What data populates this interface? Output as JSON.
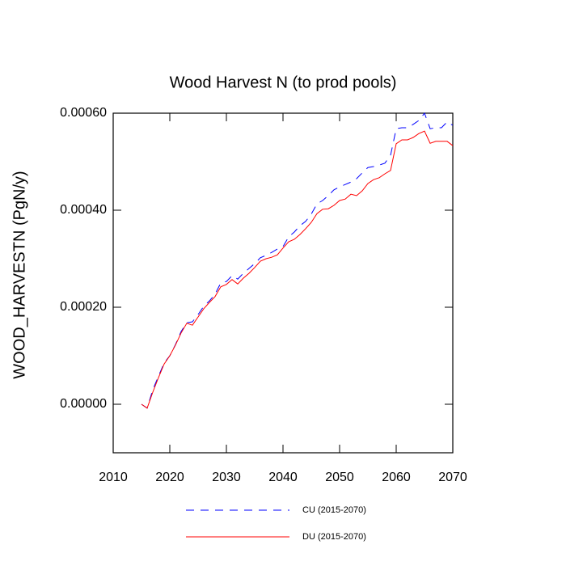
{
  "chart_data": {
    "type": "line",
    "title": "Wood Harvest N (to prod pools)",
    "y_label": "WOOD_HARVESTN  (PgN/y)",
    "x": [
      2015,
      2016,
      2017,
      2018,
      2019,
      2020,
      2021,
      2022,
      2023,
      2024,
      2025,
      2026,
      2027,
      2028,
      2029,
      2030,
      2031,
      2032,
      2033,
      2034,
      2035,
      2036,
      2037,
      2038,
      2039,
      2040,
      2041,
      2042,
      2043,
      2044,
      2045,
      2046,
      2047,
      2048,
      2049,
      2050,
      2051,
      2052,
      2053,
      2054,
      2055,
      2056,
      2057,
      2058,
      2059,
      2060,
      2061,
      2062,
      2063,
      2064,
      2065,
      2066,
      2067,
      2068,
      2069,
      2070
    ],
    "series": [
      {
        "name": "CU (2015-2070)",
        "color": "#0000ff",
        "dash": "dashed",
        "values": [
          0,
          -8e-06,
          3e-05,
          5.8e-05,
          8.5e-05,
          0.0001,
          0.000123,
          0.00015,
          0.000168,
          0.00017,
          0.000185,
          0.000202,
          0.000213,
          0.000227,
          0.00025,
          0.000253,
          0.000265,
          0.000258,
          0.00027,
          0.00028,
          0.00029,
          0.000302,
          0.000307,
          0.000313,
          0.00032,
          0.000325,
          0.000345,
          0.000355,
          0.000368,
          0.000377,
          0.000392,
          0.000413,
          0.00042,
          0.00043,
          0.000442,
          0.000448,
          0.000453,
          0.000458,
          0.000465,
          0.000477,
          0.000488,
          0.00049,
          0.000493,
          0.000497,
          0.000513,
          0.000568,
          0.00057,
          0.00057,
          0.000577,
          0.000585,
          0.0006,
          0.000568,
          0.00057,
          0.00057,
          0.000582,
          0.000575
        ]
      },
      {
        "name": "DU (2015-2070)",
        "color": "#ff0000",
        "dash": "solid",
        "values": [
          0,
          -8e-06,
          2.5e-05,
          5.5e-05,
          8.3e-05,
          0.0001,
          0.000122,
          0.000147,
          0.000167,
          0.000163,
          0.00018,
          0.000197,
          0.00021,
          0.000222,
          0.000242,
          0.000247,
          0.000257,
          0.000248,
          0.00026,
          0.00027,
          0.000282,
          0.000295,
          0.0003,
          0.000303,
          0.000308,
          0.000322,
          0.000335,
          0.00034,
          0.00035,
          0.000362,
          0.000375,
          0.000393,
          0.000402,
          0.000403,
          0.00041,
          0.00042,
          0.000423,
          0.000433,
          0.00043,
          0.00044,
          0.000455,
          0.000463,
          0.000467,
          0.000475,
          0.000482,
          0.000537,
          0.000545,
          0.000545,
          0.00055,
          0.000558,
          0.000563,
          0.000538,
          0.000542,
          0.000542,
          0.000542,
          0.000533
        ]
      }
    ],
    "xlim": [
      2010,
      2070
    ],
    "xticks": [
      2010,
      2020,
      2030,
      2040,
      2050,
      2060,
      2070
    ],
    "ylim": [
      -0.0001,
      0.0006
    ],
    "yticks": [
      {
        "value": 0,
        "label": "0.00000"
      },
      {
        "value": 0.0002,
        "label": "0.00020"
      },
      {
        "value": 0.0004,
        "label": "0.00040"
      },
      {
        "value": 0.0006,
        "label": "0.00060"
      }
    ],
    "grid": false,
    "legend": "bottom"
  }
}
